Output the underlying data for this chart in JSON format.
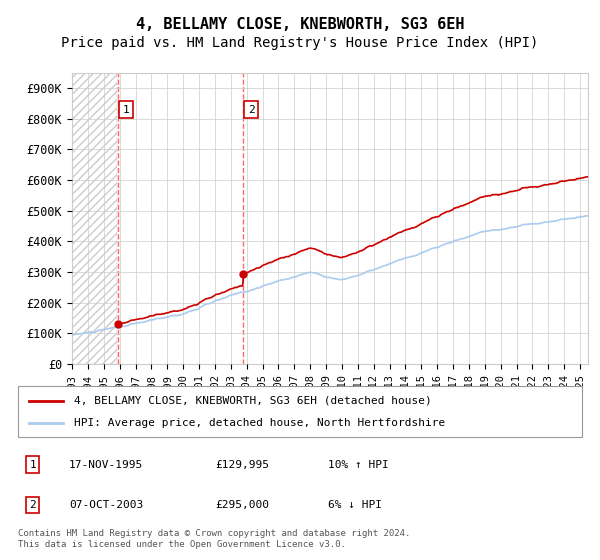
{
  "title": "4, BELLAMY CLOSE, KNEBWORTH, SG3 6EH",
  "subtitle": "Price paid vs. HM Land Registry's House Price Index (HPI)",
  "ylabel": "",
  "xlabel": "",
  "ylim": [
    0,
    950000
  ],
  "yticks": [
    0,
    100000,
    200000,
    300000,
    400000,
    500000,
    600000,
    700000,
    800000,
    900000
  ],
  "ytick_labels": [
    "£0",
    "£100K",
    "£200K",
    "£300K",
    "£400K",
    "£500K",
    "£600K",
    "£700K",
    "£800K",
    "£900K"
  ],
  "hpi_color": "#aaccee",
  "price_color": "#cc0000",
  "sale1_date": 1995.88,
  "sale1_price": 129995,
  "sale1_label": "1",
  "sale2_date": 2003.77,
  "sale2_price": 295000,
  "sale2_label": "2",
  "hatch_color": "#cccccc",
  "grid_color": "#cccccc",
  "legend_entries": [
    "4, BELLAMY CLOSE, KNEBWORTH, SG3 6EH (detached house)",
    "HPI: Average price, detached house, North Hertfordshire"
  ],
  "transaction_table": [
    {
      "num": "1",
      "date": "17-NOV-1995",
      "price": "£129,995",
      "hpi": "10% ↑ HPI"
    },
    {
      "num": "2",
      "date": "07-OCT-2003",
      "price": "£295,000",
      "hpi": "6% ↓ HPI"
    }
  ],
  "footnote": "Contains HM Land Registry data © Crown copyright and database right 2024.\nThis data is licensed under the Open Government Licence v3.0.",
  "title_fontsize": 11,
  "subtitle_fontsize": 10,
  "tick_fontsize": 8.5,
  "xstart": 1993,
  "xend": 2025.5
}
